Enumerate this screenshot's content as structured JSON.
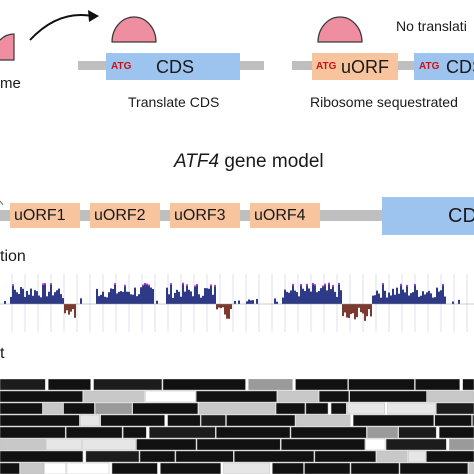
{
  "top_panel": {
    "ribosome_label_fragment": "me",
    "atg_label": "ATG",
    "cds_label": "CDS",
    "uorf_label": "uORF",
    "caption_translate": "Translate CDS",
    "caption_sequestered": "Ribosome sequestrated",
    "caption_no_translation": "No translati"
  },
  "gene_model": {
    "gene_name": "ATF4",
    "title_suffix": " gene model",
    "uorfs": [
      "uORF1",
      "uORF2",
      "uORF3",
      "uORF4"
    ],
    "cds_label": "CD"
  },
  "tracks": {
    "conservation_label": "tion",
    "alignment_label": "t"
  },
  "colors": {
    "ribosome": "#ef8ea0",
    "cds_box": "#9dc3ef",
    "uorf_box": "#f7c49e",
    "backbone": "#bfbfbf",
    "atg_text": "#cc1111",
    "positive_peaks": "#2e3a86",
    "negative_peaks": "#7b3a30",
    "peak_tip": "#cc33cc"
  }
}
